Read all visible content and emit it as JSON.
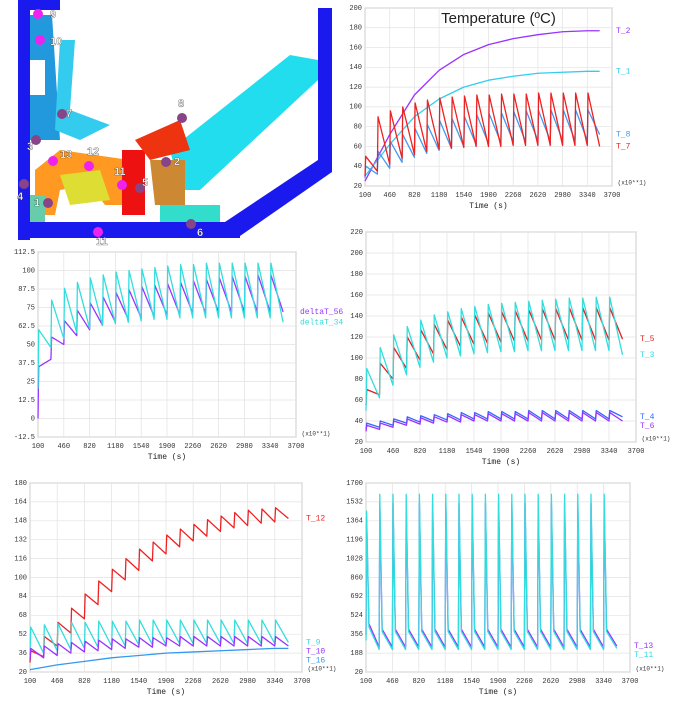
{
  "diagram": {
    "nodes": [
      {
        "label": "9"
      },
      {
        "label": "10"
      },
      {
        "label": "7"
      },
      {
        "label": "3"
      },
      {
        "label": "13"
      },
      {
        "label": "12"
      },
      {
        "label": "8"
      },
      {
        "label": "2"
      },
      {
        "label": "11"
      },
      {
        "label": "5"
      },
      {
        "label": "4"
      },
      {
        "label": "1"
      },
      {
        "label": "6"
      },
      {
        "label": "11"
      }
    ]
  },
  "chart_data": [
    {
      "type": "line",
      "title": "Temperature (ºC)",
      "x_label": "Time (s)",
      "x_unit_label": "(x10**1)",
      "xlim": [
        100,
        3700
      ],
      "xticks": [
        100,
        460,
        820,
        1180,
        1540,
        1900,
        2260,
        2620,
        2980,
        3340,
        3700
      ],
      "ylim": [
        20,
        200
      ],
      "yticks": [
        20,
        40,
        60,
        80,
        100,
        120,
        140,
        160,
        180,
        200
      ],
      "grid": true,
      "x": [
        100,
        110,
        280,
        290,
        460,
        470,
        640,
        650,
        820,
        830,
        1000,
        1010,
        1180,
        1190,
        1360,
        1370,
        1540,
        1550,
        1720,
        1730,
        1900,
        1910,
        2080,
        2090,
        2260,
        2270,
        2440,
        2450,
        2620,
        2630,
        2800,
        2810,
        2980,
        2990,
        3160,
        3170,
        3340,
        3350,
        3520
      ],
      "series": [
        {
          "name": "T_2",
          "color": "#9933ff",
          "x": [
            100,
            460,
            820,
            1180,
            1540,
            1900,
            2260,
            2620,
            2980,
            3340,
            3520
          ],
          "values": [
            25,
            72,
            112,
            137,
            153,
            163,
            169,
            173,
            176,
            177,
            177
          ]
        },
        {
          "name": "T_1",
          "color": "#33ccee",
          "x": [
            100,
            460,
            820,
            1180,
            1540,
            1900,
            2260,
            2620,
            2980,
            3340,
            3520
          ],
          "values": [
            30,
            62,
            90,
            108,
            120,
            127,
            131,
            134,
            135,
            136,
            136
          ]
        },
        {
          "name": "T_8",
          "color": "#4499ee",
          "values": [
            28,
            40,
            32,
            55,
            38,
            65,
            44,
            72,
            49,
            78,
            53,
            82,
            56,
            86,
            58,
            88,
            60,
            90,
            62,
            92,
            63,
            93,
            64,
            94,
            65,
            95,
            65,
            96,
            66,
            96,
            66,
            97,
            66,
            97,
            66,
            97,
            66,
            97,
            72
          ]
        },
        {
          "name": "T_7",
          "color": "#ee2222",
          "values": [
            30,
            50,
            35,
            90,
            42,
            96,
            48,
            100,
            52,
            104,
            55,
            107,
            57,
            109,
            58,
            110,
            59,
            111,
            60,
            112,
            60,
            112,
            60,
            113,
            61,
            113,
            61,
            113,
            61,
            114,
            61,
            114,
            61,
            114,
            61,
            114,
            61,
            114,
            60
          ]
        }
      ]
    },
    {
      "type": "line",
      "x_label": "Time (s)",
      "x_unit_label": "(x10**1)",
      "xlim": [
        100,
        3700
      ],
      "xticks": [
        100,
        460,
        820,
        1180,
        1540,
        1900,
        2260,
        2620,
        2980,
        3340,
        3700
      ],
      "ylim": [
        -12.5,
        112.5
      ],
      "yticks": [
        -12.5,
        0,
        12.5,
        25,
        37.5,
        50,
        62.5,
        75,
        87.5,
        100,
        112.5
      ],
      "grid": true,
      "x": [
        100,
        110,
        280,
        290,
        460,
        470,
        640,
        650,
        820,
        830,
        1000,
        1010,
        1180,
        1190,
        1360,
        1370,
        1540,
        1550,
        1720,
        1730,
        1900,
        1910,
        2080,
        2090,
        2260,
        2270,
        2440,
        2450,
        2620,
        2630,
        2800,
        2810,
        2980,
        2990,
        3160,
        3170,
        3340,
        3350,
        3520
      ],
      "series": [
        {
          "name": "deltaT_56",
          "color": "#9933ff",
          "values": [
            0,
            35,
            40,
            55,
            50,
            66,
            56,
            73,
            60,
            78,
            63,
            82,
            65,
            85,
            67,
            87,
            68,
            89,
            69,
            90,
            70,
            91,
            70,
            92,
            71,
            93,
            71,
            94,
            72,
            95,
            72,
            96,
            72,
            96,
            72,
            97,
            72,
            97,
            72
          ]
        },
        {
          "name": "deltaT_34",
          "color": "#33dddd",
          "values": [
            20,
            60,
            48,
            80,
            54,
            88,
            58,
            92,
            61,
            95,
            63,
            97,
            64,
            99,
            65,
            100,
            66,
            101,
            67,
            102,
            67,
            103,
            68,
            104,
            68,
            104,
            68,
            105,
            68,
            105,
            68,
            105,
            68,
            105,
            68,
            105,
            68,
            105,
            65
          ]
        }
      ]
    },
    {
      "type": "line",
      "x_label": "Time (s)",
      "x_unit_label": "(x10**1)",
      "xlim": [
        100,
        3700
      ],
      "xticks": [
        100,
        460,
        820,
        1180,
        1540,
        1900,
        2260,
        2620,
        2980,
        3340,
        3700
      ],
      "ylim": [
        20,
        220
      ],
      "yticks": [
        20,
        40,
        60,
        80,
        100,
        120,
        140,
        160,
        180,
        200,
        220
      ],
      "grid": true,
      "x": [
        100,
        110,
        280,
        290,
        460,
        470,
        640,
        650,
        820,
        830,
        1000,
        1010,
        1180,
        1190,
        1360,
        1370,
        1540,
        1550,
        1720,
        1730,
        1900,
        1910,
        2080,
        2090,
        2260,
        2270,
        2440,
        2450,
        2620,
        2630,
        2800,
        2810,
        2980,
        2990,
        3160,
        3170,
        3340,
        3350,
        3520
      ],
      "series": [
        {
          "name": "T_5",
          "color": "#dd2222",
          "values": [
            55,
            70,
            65,
            95,
            80,
            110,
            90,
            120,
            98,
            127,
            104,
            132,
            108,
            136,
            111,
            139,
            113,
            141,
            114,
            143,
            115,
            144,
            116,
            145,
            116,
            146,
            117,
            147,
            117,
            147,
            117,
            148,
            117,
            148,
            117,
            148,
            117,
            148,
            118
          ]
        },
        {
          "name": "T_3",
          "color": "#33dddd",
          "values": [
            50,
            90,
            62,
            110,
            74,
            122,
            84,
            130,
            91,
            136,
            96,
            141,
            100,
            144,
            102,
            147,
            104,
            149,
            105,
            151,
            106,
            152,
            106,
            153,
            107,
            154,
            107,
            155,
            107,
            156,
            107,
            157,
            107,
            157,
            107,
            158,
            107,
            158,
            103
          ]
        },
        {
          "name": "T_4",
          "color": "#3366ff",
          "values": [
            32,
            38,
            34,
            40,
            36,
            42,
            38,
            44,
            39,
            45,
            40,
            46,
            41,
            47,
            41,
            48,
            42,
            48,
            42,
            49,
            42,
            49,
            42,
            49,
            42,
            50,
            42,
            50,
            42,
            50,
            42,
            50,
            42,
            50,
            42,
            50,
            42,
            50,
            44
          ]
        },
        {
          "name": "T_6",
          "color": "#9933ff",
          "values": [
            30,
            36,
            32,
            38,
            34,
            40,
            36,
            42,
            37,
            43,
            38,
            44,
            39,
            45,
            39,
            46,
            40,
            46,
            40,
            47,
            40,
            47,
            40,
            47,
            40,
            48,
            40,
            48,
            40,
            48,
            40,
            48,
            40,
            48,
            40,
            48,
            40,
            48,
            40
          ]
        }
      ]
    },
    {
      "type": "line",
      "x_label": "Time (s)",
      "x_unit_label": "(x10**1)",
      "xlim": [
        100,
        3700
      ],
      "xticks": [
        100,
        460,
        820,
        1180,
        1540,
        1900,
        2260,
        2620,
        2980,
        3340,
        3700
      ],
      "ylim": [
        20,
        180
      ],
      "yticks": [
        20,
        36,
        52,
        68,
        84,
        100,
        116,
        132,
        148,
        164,
        180
      ],
      "grid": true,
      "x": [
        100,
        110,
        280,
        290,
        460,
        470,
        640,
        650,
        820,
        830,
        1000,
        1010,
        1180,
        1190,
        1360,
        1370,
        1540,
        1550,
        1720,
        1730,
        1900,
        1910,
        2080,
        2090,
        2260,
        2270,
        2440,
        2450,
        2620,
        2630,
        2800,
        2810,
        2980,
        2990,
        3160,
        3170,
        3340,
        3350,
        3520
      ],
      "series": [
        {
          "name": "T_12",
          "color": "#ee2222",
          "values": [
            28,
            38,
            33,
            50,
            42,
            62,
            53,
            74,
            65,
            86,
            77,
            97,
            88,
            107,
            98,
            116,
            106,
            124,
            114,
            130,
            120,
            136,
            126,
            141,
            131,
            145,
            135,
            149,
            139,
            152,
            142,
            155,
            144,
            157,
            146,
            158,
            147,
            159,
            150
          ]
        },
        {
          "name": "T_9",
          "color": "#33dddd",
          "values": [
            35,
            58,
            36,
            60,
            38,
            61,
            39,
            62,
            40,
            62,
            41,
            63,
            42,
            63,
            42,
            63,
            43,
            64,
            43,
            64,
            43,
            64,
            44,
            64,
            44,
            64,
            44,
            64,
            44,
            64,
            44,
            64,
            44,
            64,
            44,
            64,
            44,
            64,
            45
          ]
        },
        {
          "name": "T_10",
          "color": "#9933ff",
          "values": [
            30,
            40,
            32,
            42,
            34,
            44,
            36,
            45,
            37,
            46,
            38,
            47,
            39,
            48,
            40,
            48,
            41,
            49,
            41,
            49,
            42,
            49,
            42,
            50,
            42,
            50,
            42,
            50,
            42,
            50,
            42,
            50,
            42,
            50,
            42,
            50,
            42,
            50,
            42
          ]
        },
        {
          "name": "T_16",
          "color": "#3399ee",
          "x": [
            100,
            460,
            820,
            1180,
            1540,
            1900,
            2260,
            2620,
            2980,
            3340,
            3520
          ],
          "values": [
            22,
            26,
            29,
            32,
            34,
            36,
            37,
            38,
            39,
            40,
            40
          ]
        }
      ]
    },
    {
      "type": "line",
      "x_label": "Time (s)",
      "x_unit_label": "(x10**1)",
      "xlim": [
        100,
        3700
      ],
      "xticks": [
        100,
        460,
        820,
        1180,
        1540,
        1900,
        2260,
        2620,
        2980,
        3340,
        3700
      ],
      "ylim": [
        20,
        1700
      ],
      "yticks": [
        20,
        188,
        356,
        524,
        692,
        860,
        1028,
        1196,
        1364,
        1532,
        1700
      ],
      "grid": true,
      "x": [
        100,
        108,
        140,
        280,
        288,
        320,
        460,
        468,
        500,
        640,
        648,
        680,
        820,
        828,
        860,
        1000,
        1008,
        1040,
        1180,
        1188,
        1220,
        1360,
        1368,
        1400,
        1540,
        1548,
        1580,
        1720,
        1728,
        1760,
        1900,
        1908,
        1940,
        2080,
        2088,
        2120,
        2260,
        2268,
        2300,
        2440,
        2448,
        2480,
        2620,
        2628,
        2660,
        2800,
        2808,
        2840,
        2980,
        2988,
        3020,
        3160,
        3168,
        3200,
        3340,
        3348,
        3380,
        3520
      ],
      "series": [
        {
          "name": "T_13",
          "color": "#9933ff",
          "values": [
            350,
            1400,
            450,
            240,
            1520,
            400,
            240,
            1520,
            400,
            240,
            1520,
            400,
            240,
            1520,
            400,
            240,
            1520,
            400,
            240,
            1520,
            400,
            240,
            1520,
            400,
            240,
            1520,
            400,
            240,
            1520,
            400,
            240,
            1520,
            400,
            240,
            1520,
            400,
            240,
            1520,
            400,
            240,
            1520,
            400,
            240,
            1520,
            400,
            240,
            1520,
            400,
            240,
            1520,
            400,
            240,
            1520,
            400,
            240,
            1520,
            400,
            250
          ]
        },
        {
          "name": "T_11",
          "color": "#33dddd",
          "values": [
            300,
            1450,
            420,
            220,
            1600,
            380,
            220,
            1600,
            380,
            220,
            1600,
            380,
            220,
            1600,
            380,
            220,
            1600,
            380,
            220,
            1600,
            380,
            220,
            1600,
            380,
            220,
            1600,
            380,
            220,
            1600,
            380,
            220,
            1600,
            380,
            220,
            1600,
            380,
            220,
            1600,
            380,
            220,
            1600,
            380,
            220,
            1600,
            380,
            220,
            1600,
            380,
            220,
            1600,
            380,
            220,
            1600,
            380,
            220,
            1600,
            380,
            230
          ]
        }
      ]
    }
  ]
}
